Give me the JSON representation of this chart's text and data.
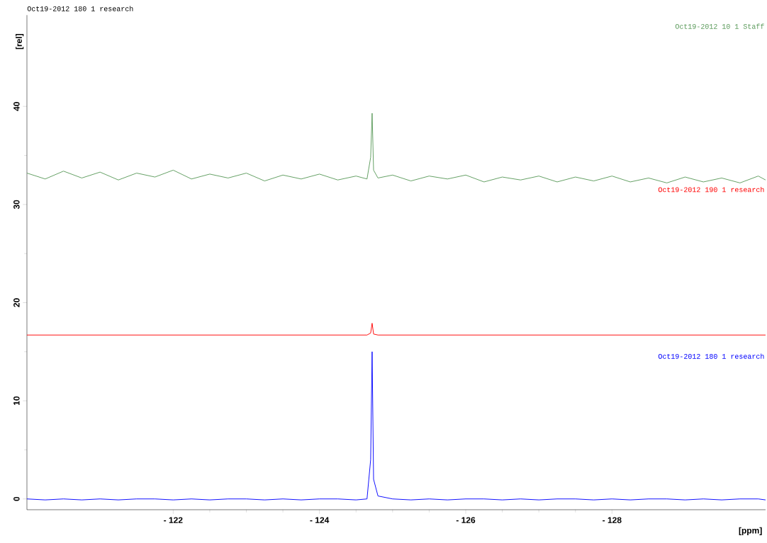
{
  "chart_data": {
    "type": "line",
    "title": "Oct19-2012  180  1  research",
    "xlabel": "[ppm]",
    "ylabel": "[rel]",
    "x": [
      -120.0,
      -120.25,
      -120.5,
      -120.75,
      -121.0,
      -121.25,
      -121.5,
      -121.75,
      -122.0,
      -122.25,
      -122.5,
      -122.75,
      -123.0,
      -123.25,
      -123.5,
      -123.75,
      -124.0,
      -124.25,
      -124.5,
      -124.65,
      -124.7,
      -124.72,
      -124.74,
      -124.8,
      -125.0,
      -125.25,
      -125.5,
      -125.75,
      -126.0,
      -126.25,
      -126.5,
      -126.75,
      -127.0,
      -127.25,
      -127.5,
      -127.75,
      -128.0,
      -128.25,
      -128.5,
      -128.75,
      -129.0,
      -129.25,
      -129.5,
      -129.75,
      -130.0,
      -130.1
    ],
    "series": [
      {
        "name": "Oct19-2012  10  1  Staff",
        "color": "#5a9a5a",
        "values": [
          33.2,
          32.6,
          33.4,
          32.7,
          33.3,
          32.5,
          33.2,
          32.8,
          33.5,
          32.6,
          33.1,
          32.7,
          33.2,
          32.4,
          33.0,
          32.6,
          33.1,
          32.5,
          32.9,
          32.6,
          34.8,
          39.3,
          33.5,
          32.7,
          33.0,
          32.4,
          32.9,
          32.6,
          33.0,
          32.3,
          32.8,
          32.5,
          32.9,
          32.3,
          32.8,
          32.4,
          32.9,
          32.3,
          32.7,
          32.2,
          32.8,
          32.3,
          32.7,
          32.2,
          32.9,
          32.5
        ]
      },
      {
        "name": "Oct19-2012  190  1  research",
        "color": "#ff0000",
        "values": [
          16.7,
          16.7,
          16.7,
          16.7,
          16.7,
          16.7,
          16.7,
          16.7,
          16.7,
          16.7,
          16.7,
          16.7,
          16.7,
          16.7,
          16.7,
          16.7,
          16.7,
          16.7,
          16.7,
          16.7,
          16.9,
          17.9,
          16.8,
          16.7,
          16.7,
          16.7,
          16.7,
          16.7,
          16.7,
          16.7,
          16.7,
          16.7,
          16.7,
          16.7,
          16.7,
          16.7,
          16.7,
          16.7,
          16.7,
          16.7,
          16.7,
          16.7,
          16.7,
          16.7,
          16.7,
          16.7
        ]
      },
      {
        "name": "Oct19-2012  180  1  research",
        "color": "#0000ff",
        "values": [
          0.0,
          -0.1,
          0.0,
          -0.1,
          0.0,
          -0.1,
          0.0,
          0.0,
          -0.1,
          0.0,
          -0.1,
          0.0,
          0.0,
          -0.1,
          0.0,
          -0.1,
          0.0,
          0.0,
          -0.1,
          0.0,
          4.0,
          15.0,
          2.0,
          0.3,
          0.0,
          -0.1,
          0.0,
          -0.1,
          0.0,
          0.0,
          -0.1,
          0.0,
          -0.1,
          0.0,
          0.0,
          -0.1,
          0.0,
          -0.1,
          0.0,
          0.0,
          -0.1,
          0.0,
          -0.1,
          0.0,
          0.0,
          -0.1
        ]
      }
    ],
    "xlim": [
      -120.0,
      -130.1
    ],
    "ylim": [
      -1.1,
      49.3
    ],
    "xticks": [
      {
        "value": -122,
        "label": "- 122"
      },
      {
        "value": -124,
        "label": "- 124"
      },
      {
        "value": -126,
        "label": "- 126"
      },
      {
        "value": -128,
        "label": "- 128"
      }
    ],
    "yticks": [
      0,
      10,
      20,
      30,
      40
    ]
  }
}
